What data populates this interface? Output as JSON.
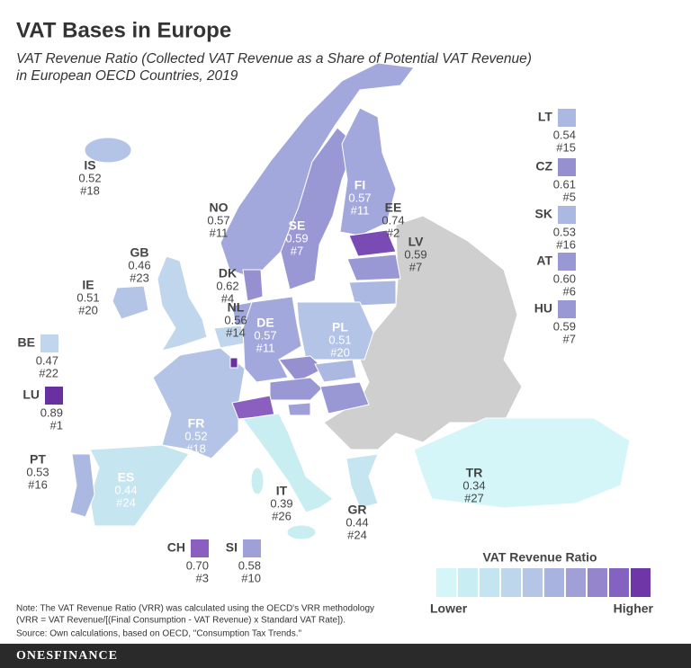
{
  "header": {
    "title": "VAT Bases in Europe",
    "subtitle_lines": [
      "VAT Revenue Ratio (Collected VAT Revenue as a Share of Potential VAT Revenue)",
      "in European OECD Countries, 2019"
    ]
  },
  "countries": [
    {
      "code": "IS",
      "value": "0.52",
      "rank": "#18",
      "color": "#b4c4e6"
    },
    {
      "code": "NO",
      "value": "0.57",
      "rank": "#11",
      "color": "#a3a8dc"
    },
    {
      "code": "SE",
      "value": "0.59",
      "rank": "#7",
      "color": "#9a98d4"
    },
    {
      "code": "FI",
      "value": "0.57",
      "rank": "#11",
      "color": "#a3a8dc"
    },
    {
      "code": "EE",
      "value": "0.74",
      "rank": "#2",
      "color": "#7a4ab5"
    },
    {
      "code": "LV",
      "value": "0.59",
      "rank": "#7",
      "color": "#9a98d4"
    },
    {
      "code": "LT",
      "value": "0.54",
      "rank": "#15",
      "color": "#aab8e2"
    },
    {
      "code": "GB",
      "value": "0.46",
      "rank": "#23",
      "color": "#c0d6ec"
    },
    {
      "code": "IE",
      "value": "0.51",
      "rank": "#20",
      "color": "#b4c4e6"
    },
    {
      "code": "DK",
      "value": "0.62",
      "rank": "#4",
      "color": "#9690d0"
    },
    {
      "code": "NL",
      "value": "0.56",
      "rank": "#14",
      "color": "#a3a8dc"
    },
    {
      "code": "BE",
      "value": "0.47",
      "rank": "#22",
      "color": "#c0d6ec"
    },
    {
      "code": "LU",
      "value": "0.89",
      "rank": "#1",
      "color": "#6a2fa0"
    },
    {
      "code": "DE",
      "value": "0.57",
      "rank": "#11",
      "color": "#a3a8dc"
    },
    {
      "code": "PL",
      "value": "0.51",
      "rank": "#20",
      "color": "#b4c4e6"
    },
    {
      "code": "CZ",
      "value": "0.61",
      "rank": "#5",
      "color": "#9690d0"
    },
    {
      "code": "SK",
      "value": "0.53",
      "rank": "#16",
      "color": "#aab8e2"
    },
    {
      "code": "AT",
      "value": "0.60",
      "rank": "#6",
      "color": "#9a98d4"
    },
    {
      "code": "HU",
      "value": "0.59",
      "rank": "#7",
      "color": "#9a98d4"
    },
    {
      "code": "CH",
      "value": "0.70",
      "rank": "#3",
      "color": "#8a5fc0"
    },
    {
      "code": "SI",
      "value": "0.58",
      "rank": "#10",
      "color": "#a0a0d8"
    },
    {
      "code": "FR",
      "value": "0.52",
      "rank": "#18",
      "color": "#b4c4e6"
    },
    {
      "code": "ES",
      "value": "0.44",
      "rank": "#24",
      "color": "#c5e5f0"
    },
    {
      "code": "PT",
      "value": "0.53",
      "rank": "#16",
      "color": "#aab8e2"
    },
    {
      "code": "IT",
      "value": "0.39",
      "rank": "#26",
      "color": "#c9eef2"
    },
    {
      "code": "GR",
      "value": "0.44",
      "rank": "#24",
      "color": "#c5e5f0"
    },
    {
      "code": "TR",
      "value": "0.34",
      "rank": "#27",
      "color": "#d5f6f8"
    }
  ],
  "legend": {
    "title": "VAT Revenue Ratio",
    "low": "Lower",
    "high": "Higher",
    "colors": [
      "#d5f6f8",
      "#c8eef3",
      "#c3e4f0",
      "#bed6ec",
      "#b4c5e6",
      "#a9b3df",
      "#a19fd8",
      "#9585cd",
      "#8462bf",
      "#6f36a8"
    ]
  },
  "notes": [
    "Note: The VAT Revenue Ratio (VRR) was calculated using the OECD's VRR methodology",
    "(VRR = VAT Revenue/[(Final Consumption - VAT Revenue) x Standard VAT Rate]).",
    "Source: Own calculations, based on OECD, \"Consumption Tax Trends.\""
  ],
  "footer": {
    "brand": "ONESFINANCE"
  }
}
